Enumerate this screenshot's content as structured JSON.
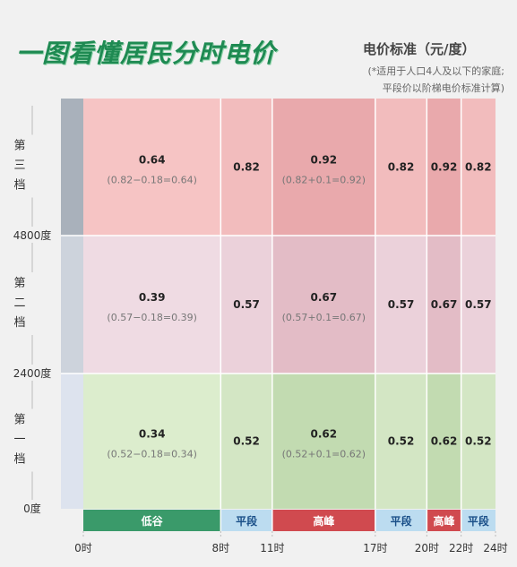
{
  "title": "一图看懂居民分时电价",
  "subtitle": "电价标准（元/度）",
  "note_lines": [
    "(*适用于人口4人及以下的家庭;",
    "平段价以阶梯电价标准计算)"
  ],
  "colors": {
    "valley": "#3a9a6a",
    "flat": "#bcdcf0",
    "peak": "#d04a4f",
    "tier3": "#f6c4c4",
    "tier2": "#efdbe3",
    "tier1": "#dcedcd"
  },
  "chart_data": {
    "type": "heatmap",
    "x_hours": [
      0,
      8,
      11,
      17,
      20,
      22,
      24
    ],
    "x_tick_labels": [
      "0时",
      "8时",
      "11时",
      "17时",
      "20时",
      "22时",
      "24时"
    ],
    "periods": [
      {
        "name": "低谷",
        "kind": "valley",
        "start": 0,
        "end": 8
      },
      {
        "name": "平段",
        "kind": "flat",
        "start": 8,
        "end": 11
      },
      {
        "name": "高峰",
        "kind": "peak",
        "start": 11,
        "end": 17
      },
      {
        "name": "平段",
        "kind": "flat",
        "start": 17,
        "end": 20
      },
      {
        "name": "高峰",
        "kind": "peak",
        "start": 20,
        "end": 22
      },
      {
        "name": "平段",
        "kind": "flat",
        "start": 22,
        "end": 24
      }
    ],
    "y_tick_labels": [
      "0度",
      "2400度",
      "4800度"
    ],
    "tiers": [
      {
        "label": [
          "第",
          "三",
          "档"
        ],
        "values": [
          "0.64",
          "0.82",
          "0.92",
          "0.82",
          "0.92",
          "0.82"
        ],
        "formulas": [
          "(0.82−0.18=0.64)",
          "",
          "(0.82+0.1=0.92)",
          "",
          "",
          ""
        ]
      },
      {
        "label": [
          "第",
          "二",
          "档"
        ],
        "values": [
          "0.39",
          "0.57",
          "0.67",
          "0.57",
          "0.67",
          "0.57"
        ],
        "formulas": [
          "(0.57−0.18=0.39)",
          "",
          "(0.57+0.1=0.67)",
          "",
          "",
          ""
        ]
      },
      {
        "label": [
          "第",
          "一",
          "档"
        ],
        "values": [
          "0.34",
          "0.52",
          "0.62",
          "0.52",
          "0.62",
          "0.52"
        ],
        "formulas": [
          "(0.52−0.18=0.34)",
          "",
          "(0.52+0.1=0.62)",
          "",
          "",
          ""
        ]
      }
    ]
  }
}
